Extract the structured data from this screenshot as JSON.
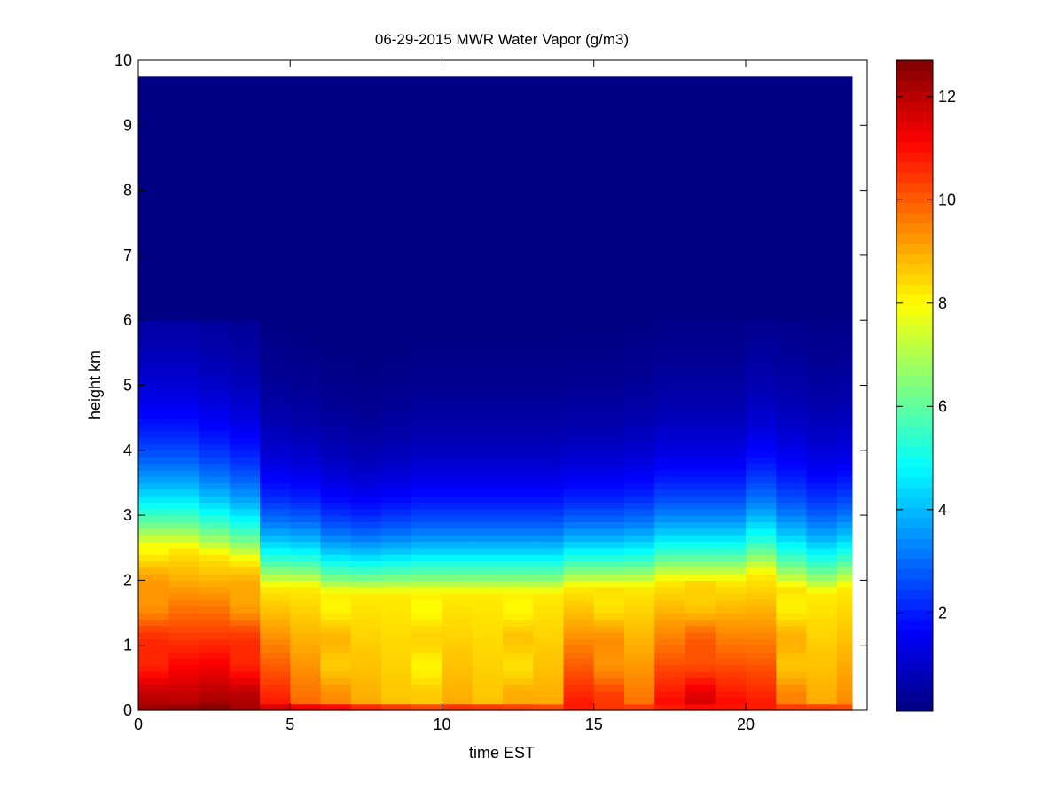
{
  "chart_data": {
    "type": "heatmap",
    "title": "06-29-2015 MWR Water Vapor (g/m3)",
    "xlabel": "time EST",
    "ylabel": "height km",
    "xlim": [
      0,
      24
    ],
    "ylim": [
      0,
      10
    ],
    "xticks": [
      "0",
      "5",
      "10",
      "15",
      "20"
    ],
    "yticks": [
      "0",
      "1",
      "2",
      "3",
      "4",
      "5",
      "6",
      "7",
      "8",
      "9",
      "10"
    ],
    "colorbar": {
      "colormap": "jet",
      "range": [
        0.1,
        12.7
      ],
      "ticks": [
        "2",
        "4",
        "6",
        "8",
        "10",
        "12"
      ],
      "position": "right"
    },
    "grid": false,
    "time_step_hours": 1,
    "time_start": 0,
    "time_end": 23.5,
    "height_top_km": 9.75,
    "height_levels_km": [
      0.0,
      0.1,
      0.2,
      0.3,
      0.4,
      0.5,
      0.6,
      0.7,
      0.8,
      0.9,
      1.0,
      1.1,
      1.2,
      1.3,
      1.4,
      1.5,
      1.6,
      1.7,
      1.8,
      1.9,
      2.0,
      2.1,
      2.2,
      2.3,
      2.4,
      2.5,
      2.6,
      2.7,
      2.8,
      2.9,
      3.0,
      3.1,
      3.2,
      3.3,
      3.4,
      3.5,
      3.6,
      3.7,
      3.8,
      3.9,
      4.0,
      4.1,
      4.2,
      4.3,
      4.4,
      4.5,
      4.6,
      4.7,
      4.8,
      4.9,
      5.0,
      5.1,
      5.2,
      5.3,
      5.4,
      5.5,
      5.6,
      5.7,
      5.8,
      5.9,
      6.0
    ],
    "surface_vapor": [
      12.3,
      12.4,
      12.6,
      12.2,
      11.6,
      11.2,
      11.0,
      10.6,
      10.4,
      10.2,
      10.5,
      10.4,
      10.3,
      10.2,
      10.8,
      10.5,
      10.4,
      10.8,
      11.0,
      10.9,
      10.8,
      10.4,
      10.3,
      10.2
    ],
    "lower_layer_vapor": [
      11.8,
      12.0,
      12.2,
      11.9,
      10.8,
      9.8,
      9.2,
      9.0,
      8.7,
      8.4,
      9.0,
      8.7,
      8.8,
      9.0,
      10.8,
      10.2,
      9.7,
      11.0,
      11.4,
      11.0,
      10.8,
      9.3,
      9.0,
      9.4
    ],
    "moist_layer_top_km": [
      2.5,
      2.5,
      2.4,
      2.3,
      1.9,
      1.9,
      1.8,
      1.8,
      1.8,
      1.8,
      1.8,
      1.8,
      1.8,
      1.8,
      1.9,
      1.9,
      1.9,
      2.0,
      2.0,
      2.0,
      2.1,
      1.9,
      1.8,
      1.9
    ],
    "scale_height_km": [
      1.3,
      1.3,
      1.25,
      1.2,
      1.05,
      1.0,
      0.95,
      0.9,
      0.95,
      1.0,
      1.0,
      1.0,
      1.0,
      1.0,
      1.0,
      1.0,
      1.05,
      1.1,
      1.1,
      1.1,
      1.2,
      1.2,
      1.15,
      1.15
    ]
  }
}
